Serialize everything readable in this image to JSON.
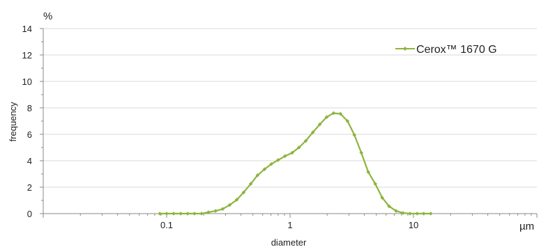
{
  "chart_data": {
    "type": "line",
    "title": "",
    "x_scale": "log",
    "x_major_ticks": [
      0.1,
      1,
      10
    ],
    "x_range": [
      0.01,
      100
    ],
    "xlabel": "diameter",
    "x_unit": "µm",
    "ylabel": "frequency",
    "y_unit": "%",
    "ylim": [
      0,
      14
    ],
    "y_ticks": [
      0,
      2,
      4,
      6,
      8,
      10,
      12,
      14
    ],
    "grid": "horizontal",
    "legend_position": "top-right",
    "series": [
      {
        "name": "Cerox™ 1670 G",
        "color": "#8db43e",
        "marker": "diamond",
        "points": [
          {
            "x": 0.088,
            "y": 0
          },
          {
            "x": 0.1,
            "y": 0
          },
          {
            "x": 0.114,
            "y": 0
          },
          {
            "x": 0.13,
            "y": 0
          },
          {
            "x": 0.148,
            "y": 0
          },
          {
            "x": 0.168,
            "y": 0
          },
          {
            "x": 0.192,
            "y": 0
          },
          {
            "x": 0.218,
            "y": 0.1
          },
          {
            "x": 0.249,
            "y": 0.2
          },
          {
            "x": 0.284,
            "y": 0.35
          },
          {
            "x": 0.324,
            "y": 0.65
          },
          {
            "x": 0.37,
            "y": 1.05
          },
          {
            "x": 0.42,
            "y": 1.6
          },
          {
            "x": 0.48,
            "y": 2.25
          },
          {
            "x": 0.545,
            "y": 2.9
          },
          {
            "x": 0.62,
            "y": 3.35
          },
          {
            "x": 0.705,
            "y": 3.75
          },
          {
            "x": 0.8,
            "y": 4.05
          },
          {
            "x": 0.91,
            "y": 4.35
          },
          {
            "x": 1.04,
            "y": 4.6
          },
          {
            "x": 1.18,
            "y": 5.0
          },
          {
            "x": 1.34,
            "y": 5.5
          },
          {
            "x": 1.53,
            "y": 6.15
          },
          {
            "x": 1.74,
            "y": 6.75
          },
          {
            "x": 1.98,
            "y": 7.3
          },
          {
            "x": 2.25,
            "y": 7.6
          },
          {
            "x": 2.56,
            "y": 7.55
          },
          {
            "x": 2.92,
            "y": 7.0
          },
          {
            "x": 3.32,
            "y": 5.95
          },
          {
            "x": 3.78,
            "y": 4.6
          },
          {
            "x": 4.3,
            "y": 3.15
          },
          {
            "x": 4.9,
            "y": 2.25
          },
          {
            "x": 5.58,
            "y": 1.2
          },
          {
            "x": 6.35,
            "y": 0.55
          },
          {
            "x": 7.23,
            "y": 0.2
          },
          {
            "x": 8.23,
            "y": 0.05
          },
          {
            "x": 9.37,
            "y": 0
          },
          {
            "x": 10.7,
            "y": 0
          },
          {
            "x": 12.1,
            "y": 0
          },
          {
            "x": 13.8,
            "y": 0
          }
        ]
      }
    ]
  }
}
